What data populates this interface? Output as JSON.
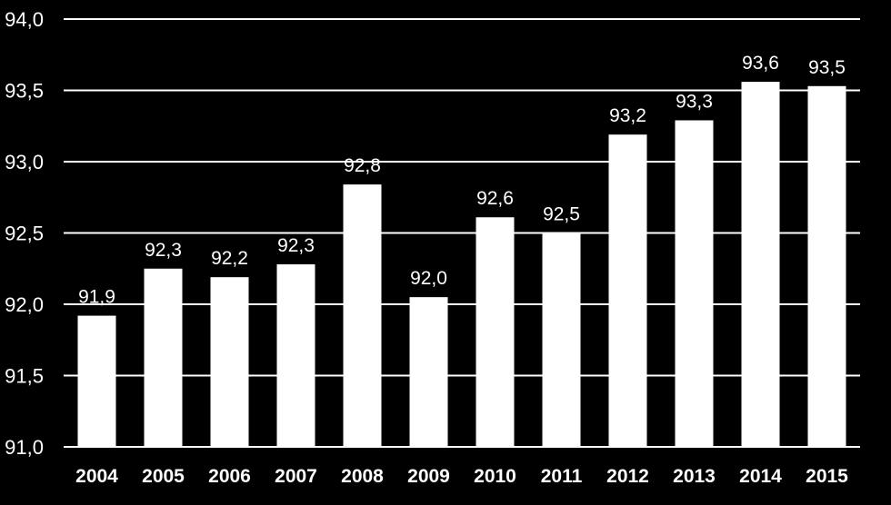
{
  "chart_data": {
    "type": "bar",
    "title": "",
    "xlabel": "",
    "ylabel": "",
    "categories": [
      "2004",
      "2005",
      "2006",
      "2007",
      "2008",
      "2009",
      "2010",
      "2011",
      "2012",
      "2013",
      "2014",
      "2015"
    ],
    "values": [
      91.92,
      92.25,
      92.19,
      92.28,
      92.84,
      92.05,
      92.61,
      92.5,
      93.19,
      93.29,
      93.56,
      93.53
    ],
    "data_labels": [
      "91,9",
      "92,3",
      "92,2",
      "92,3",
      "92,8",
      "92,0",
      "92,6",
      "92,5",
      "93,2",
      "93,3",
      "93,6",
      "93,5"
    ],
    "ylim": [
      91.0,
      94.0
    ],
    "yticks": [
      91.0,
      91.5,
      92.0,
      92.5,
      93.0,
      93.5,
      94.0
    ],
    "ytick_labels": [
      "91,0",
      "91,5",
      "92,0",
      "92,5",
      "93,0",
      "93,5",
      "94,0"
    ],
    "grid": true,
    "legend": "none",
    "colors": {
      "background": "#000000",
      "bars": "#ffffff",
      "grid": "#ffffff",
      "text": "#ffffff"
    }
  }
}
